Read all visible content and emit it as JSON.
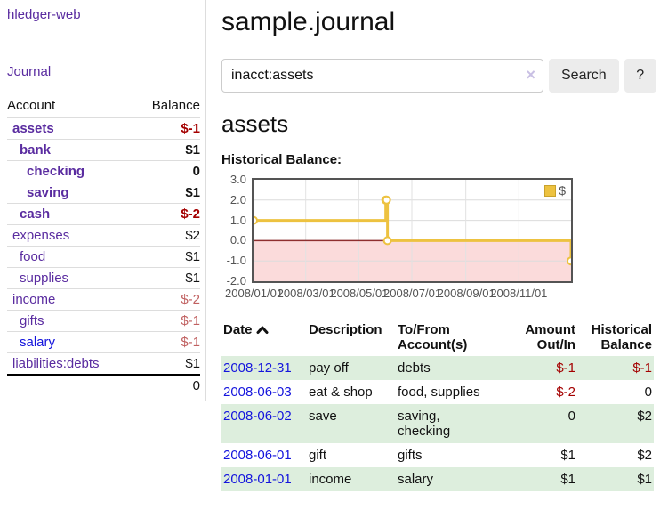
{
  "app": {
    "brand": "hledger-web",
    "nav_journal": "Journal"
  },
  "sidebar": {
    "header": {
      "account": "Account",
      "balance": "Balance"
    },
    "accounts": [
      {
        "name": "assets",
        "indent": 1,
        "bold": true,
        "balance": "$-1",
        "neg": "strong"
      },
      {
        "name": "bank",
        "indent": 2,
        "bold": true,
        "balance": "$1"
      },
      {
        "name": "checking",
        "indent": 3,
        "bold": true,
        "balance": "0"
      },
      {
        "name": "saving",
        "indent": 3,
        "bold": true,
        "balance": "$1"
      },
      {
        "name": "cash",
        "indent": 2,
        "bold": true,
        "balance": "$-2",
        "neg": "strong"
      },
      {
        "name": "expenses",
        "indent": 1,
        "bold": false,
        "balance": "$2"
      },
      {
        "name": "food",
        "indent": 2,
        "bold": false,
        "balance": "$1"
      },
      {
        "name": "supplies",
        "indent": 2,
        "bold": false,
        "balance": "$1"
      },
      {
        "name": "income",
        "indent": 1,
        "bold": false,
        "balance": "$-2",
        "neg": "soft"
      },
      {
        "name": "gifts",
        "indent": 2,
        "bold": false,
        "balance": "$-1",
        "neg": "soft"
      },
      {
        "name": "salary",
        "indent": 2,
        "bold": false,
        "balance": "$-1",
        "neg": "soft",
        "link": "blue"
      },
      {
        "name": "liabilities:debts",
        "indent": 1,
        "bold": false,
        "balance": "$1"
      }
    ],
    "total": "0"
  },
  "header": {
    "title": "sample.journal"
  },
  "search": {
    "value": "inacct:assets",
    "clear_icon": "×",
    "button": "Search",
    "help_button": "?"
  },
  "account_page": {
    "title": "assets",
    "chart_label": "Historical Balance:"
  },
  "chart_data": {
    "type": "line",
    "title": "Historical Balance:",
    "step": true,
    "x_range": [
      "2008-01-01",
      "2008-12-31"
    ],
    "ylim": [
      -2,
      3
    ],
    "y_ticks": [
      "3.0",
      "2.0",
      "1.0",
      "0.0",
      "-1.0",
      "-2.0"
    ],
    "x_ticks": [
      "2008/01/01",
      "2008/03/01",
      "2008/05/01",
      "2008/07/01",
      "2008/09/01",
      "2008/11/01"
    ],
    "grid_y_values": [
      2,
      1,
      -1
    ],
    "series": [
      {
        "name": "$",
        "color": "#edc240",
        "points": [
          [
            "2008-01-01",
            1
          ],
          [
            "2008-06-01",
            2
          ],
          [
            "2008-06-02",
            2
          ],
          [
            "2008-06-03",
            0
          ],
          [
            "2008-12-31",
            -1
          ]
        ]
      }
    ],
    "negative_fill": "#fbdbdb",
    "zero_line_color": "#8e2f2f",
    "legend": {
      "label": "$",
      "position": "top-right"
    }
  },
  "register": {
    "headers": {
      "date": "Date",
      "description": "Description",
      "accounts": "To/From Account(s)",
      "amount": "Amount Out/In",
      "balance": "Historical Balance"
    },
    "rows": [
      {
        "date": "2008-12-31",
        "description": "pay off",
        "accounts": "debts",
        "amount": "$-1",
        "amount_neg": true,
        "balance": "$-1",
        "balance_neg": true
      },
      {
        "date": "2008-06-03",
        "description": "eat & shop",
        "accounts": "food, supplies",
        "amount": "$-2",
        "amount_neg": true,
        "balance": "0",
        "balance_neg": false
      },
      {
        "date": "2008-06-02",
        "description": "save",
        "accounts": "saving, checking",
        "amount": "0",
        "amount_neg": false,
        "balance": "$2",
        "balance_neg": false
      },
      {
        "date": "2008-06-01",
        "description": "gift",
        "accounts": "gifts",
        "amount": "$1",
        "amount_neg": false,
        "balance": "$2",
        "balance_neg": false
      },
      {
        "date": "2008-01-01",
        "description": "income",
        "accounts": "salary",
        "amount": "$1",
        "amount_neg": false,
        "balance": "$1",
        "balance_neg": false
      }
    ]
  }
}
